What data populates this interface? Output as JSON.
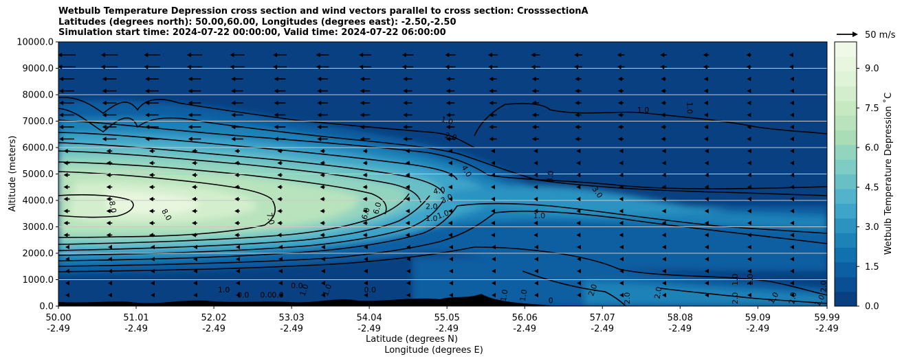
{
  "title": {
    "line1": "Wetbulb Temperature Depression cross section and wind vectors parallel to cross section: CrosssectionA",
    "line2": "Latitudes (degrees north): 50.00,60.00, Longitudes (degrees east): -2.50,-2.50",
    "line3": "Simulation start time: 2024-07-22 00:00:00, Valid time: 2024-07-22 06:00:00"
  },
  "chart_data": {
    "type": "heatmap",
    "description_kind": "filled contour cross section with wind vectors",
    "xlabel_lat": "Latitude (degrees N)",
    "xlabel_lon": "Longitude (degrees E)",
    "ylabel": "Altitude (meters)",
    "colorbar_label": "Wetbulb Temperature Depression ˚C",
    "quiver_key_label": "50 m/s",
    "ylim": [
      0,
      10000
    ],
    "xlim": [
      50.0,
      59.99
    ],
    "x_ticks": [
      {
        "lat": "50.00",
        "lon": "-2.49",
        "v": 50.0
      },
      {
        "lat": "51.01",
        "lon": "-2.49",
        "v": 51.01
      },
      {
        "lat": "52.02",
        "lon": "-2.49",
        "v": 52.02
      },
      {
        "lat": "53.03",
        "lon": "-2.49",
        "v": 53.03
      },
      {
        "lat": "54.04",
        "lon": "-2.49",
        "v": 54.04
      },
      {
        "lat": "55.05",
        "lon": "-2.49",
        "v": 55.05
      },
      {
        "lat": "56.06",
        "lon": "-2.49",
        "v": 56.06
      },
      {
        "lat": "57.07",
        "lon": "-2.49",
        "v": 57.07
      },
      {
        "lat": "58.08",
        "lon": "-2.49",
        "v": 58.08
      },
      {
        "lat": "59.09",
        "lon": "-2.49",
        "v": 59.09
      },
      {
        "lat": "59.99",
        "lon": "-2.49",
        "v": 59.99
      }
    ],
    "y_ticks": [
      {
        "label": "0.0",
        "v": 0
      },
      {
        "label": "1000.0",
        "v": 1000
      },
      {
        "label": "2000.0",
        "v": 2000
      },
      {
        "label": "3000.0",
        "v": 3000
      },
      {
        "label": "4000.0",
        "v": 4000
      },
      {
        "label": "5000.0",
        "v": 5000
      },
      {
        "label": "6000.0",
        "v": 6000
      },
      {
        "label": "7000.0",
        "v": 7000
      },
      {
        "label": "8000.0",
        "v": 8000
      },
      {
        "label": "9000.0",
        "v": 9000
      },
      {
        "label": "10000.0",
        "v": 10000
      }
    ],
    "colorbar_ticks": [
      {
        "label": "0.0",
        "v": 0.0
      },
      {
        "label": "1.5",
        "v": 1.5
      },
      {
        "label": "3.0",
        "v": 3.0
      },
      {
        "label": "4.5",
        "v": 4.5
      },
      {
        "label": "6.0",
        "v": 6.0
      },
      {
        "label": "7.5",
        "v": 7.5
      },
      {
        "label": "9.0",
        "v": 9.0
      }
    ],
    "colorbar_range": [
      0,
      10
    ],
    "colors": [
      "#084081",
      "#0a4f93",
      "#0c5fa2",
      "#1170ae",
      "#1c82b8",
      "#2c93c1",
      "#3ea4c9",
      "#53b3cc",
      "#68c0c6",
      "#7eccc4",
      "#93d4bf",
      "#a8ddb5",
      "#b8e3bc",
      "#c6e9c2",
      "#d3eecc",
      "#dff3d6",
      "#e8f6df",
      "#f0f9e8"
    ],
    "contour_labels": [
      {
        "text": "8.0",
        "x": 50.7,
        "y": 3750,
        "rot": 80
      },
      {
        "text": "8.0",
        "x": 51.4,
        "y": 3450,
        "rot": 60
      },
      {
        "text": "7.0",
        "x": 52.75,
        "y": 3300,
        "rot": 75
      },
      {
        "text": "6.0",
        "x": 54.0,
        "y": 3500,
        "rot": -75
      },
      {
        "text": "6.0",
        "x": 54.15,
        "y": 3700,
        "rot": -75
      },
      {
        "text": "4.0",
        "x": 54.95,
        "y": 4350,
        "rot": -10
      },
      {
        "text": "4.0",
        "x": 55.3,
        "y": 5100,
        "rot": 60
      },
      {
        "text": "3.0",
        "x": 55.05,
        "y": 4050,
        "rot": -25
      },
      {
        "text": "2.0",
        "x": 54.85,
        "y": 3750,
        "rot": 0
      },
      {
        "text": "1.0",
        "x": 54.85,
        "y": 3300,
        "rot": 0
      },
      {
        "text": "1.0",
        "x": 55.0,
        "y": 3450,
        "rot": -20
      },
      {
        "text": "2.0",
        "x": 55.1,
        "y": 6400,
        "rot": 15
      },
      {
        "text": "1.0",
        "x": 55.05,
        "y": 7000,
        "rot": 15
      },
      {
        "text": "1.0",
        "x": 56.25,
        "y": 3400,
        "rot": 0
      },
      {
        "text": "3.0",
        "x": 56.4,
        "y": 4900,
        "rot": -85
      },
      {
        "text": "3.0",
        "x": 57.0,
        "y": 4300,
        "rot": 55
      },
      {
        "text": "1.0",
        "x": 57.6,
        "y": 7400,
        "rot": 0
      },
      {
        "text": "1.0",
        "x": 58.2,
        "y": 7500,
        "rot": 90
      },
      {
        "text": "1.0",
        "x": 52.15,
        "y": 600,
        "rot": 0
      },
      {
        "text": "0.0",
        "x": 52.4,
        "y": 400,
        "rot": 0
      },
      {
        "text": "0.0",
        "x": 52.7,
        "y": 400,
        "rot": 0
      },
      {
        "text": "0.0",
        "x": 52.85,
        "y": 400,
        "rot": 0
      },
      {
        "text": "0.0",
        "x": 53.1,
        "y": 750,
        "rot": 0
      },
      {
        "text": "1.0",
        "x": 53.2,
        "y": 600,
        "rot": -70
      },
      {
        "text": "1.0",
        "x": 53.5,
        "y": 600,
        "rot": -70
      },
      {
        "text": "0.0",
        "x": 54.05,
        "y": 600,
        "rot": 0
      },
      {
        "text": "1.0",
        "x": 55.8,
        "y": 400,
        "rot": -80
      },
      {
        "text": "1.0",
        "x": 56.05,
        "y": 400,
        "rot": -80
      },
      {
        "text": "0",
        "x": 56.4,
        "y": 200,
        "rot": 0
      },
      {
        "text": "2.0",
        "x": 56.95,
        "y": 600,
        "rot": -70
      },
      {
        "text": "2.0",
        "x": 57.4,
        "y": 300,
        "rot": -90
      },
      {
        "text": "2.0",
        "x": 57.8,
        "y": 500,
        "rot": -80
      },
      {
        "text": "1.0",
        "x": 58.8,
        "y": 1000,
        "rot": -90
      },
      {
        "text": "1.0",
        "x": 59.0,
        "y": 1000,
        "rot": -90
      },
      {
        "text": "2.0",
        "x": 58.8,
        "y": 300,
        "rot": -90
      },
      {
        "text": "1.0",
        "x": 59.3,
        "y": 300,
        "rot": -60
      },
      {
        "text": "2.0",
        "x": 59.55,
        "y": 300,
        "rot": -80
      },
      {
        "text": "1.0",
        "x": 59.9,
        "y": 200,
        "rot": -60
      },
      {
        "text": "2.0",
        "x": 59.95,
        "y": 750,
        "rot": -90
      }
    ]
  }
}
